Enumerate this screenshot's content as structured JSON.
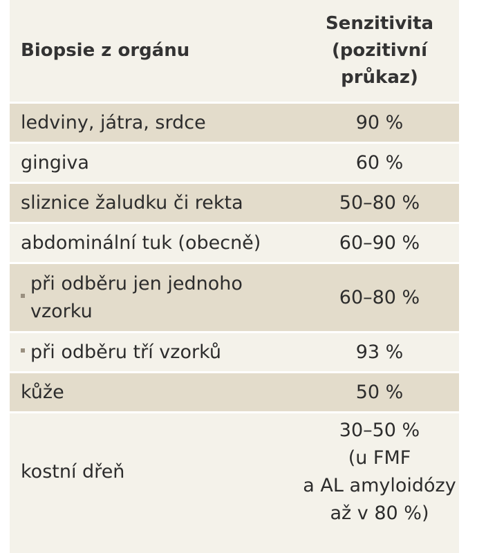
{
  "header": {
    "organ": "Biopsie z orgánu",
    "sensitivity": "Senzitivita\n(pozitivní\nprůkaz)"
  },
  "rows": [
    {
      "organ": "ledviny, játra, srdce",
      "sensitivity": "90 %"
    },
    {
      "organ": "gingiva",
      "sensitivity": "60 %"
    },
    {
      "organ": "sliznice žaludku či rekta",
      "sensitivity": "50–80 %"
    },
    {
      "organ": "abdominální tuk (obecně)",
      "sensitivity": "60–90 %"
    },
    {
      "organ": "při odběru jen jednoho\nvzorku",
      "sensitivity": "60–80 %"
    },
    {
      "organ": "při odběru tří vzorků",
      "sensitivity": "93 %"
    },
    {
      "organ": "kůže",
      "sensitivity": "50 %"
    },
    {
      "organ": "kostní dřeň",
      "sensitivity": "30–50 %\n(u FMF\na AL amyloidózy\naž v 80 %)"
    }
  ],
  "colors": {
    "shaded_row": "#e3dccb",
    "light_row": "#f4f2ea",
    "text": "#2c2c2c",
    "bullet": "#9a9080"
  }
}
